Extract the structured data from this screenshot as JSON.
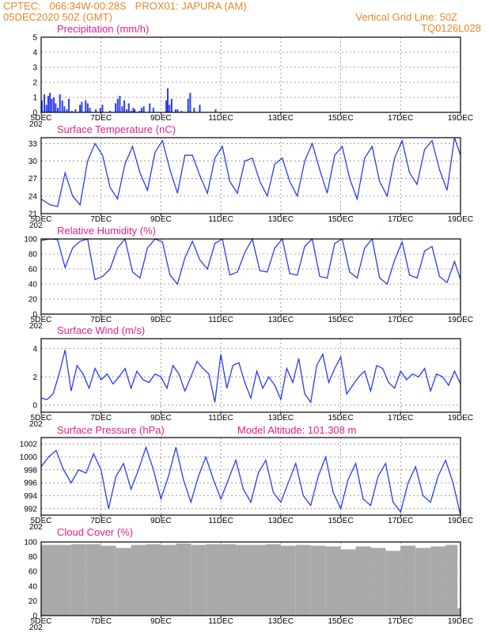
{
  "header": {
    "line1_left": "CPTEC:   066:34W-00:28S   PROX01: JAPURA (AM)",
    "line2_left": "05DEC2020 50Z (GMT)",
    "line2_right": "Vertical Grid Line: 50Z",
    "line3_right": "TQ0126L028"
  },
  "colors": {
    "header": "#e8862a",
    "title": "#e0208a",
    "line": "#2a3cf0",
    "cloud": "#a9a9a9"
  },
  "x_axis": {
    "ticks": [
      "5DEC",
      "7DEC",
      "9DEC",
      "11DEC",
      "13DEC",
      "15DEC",
      "17DEC",
      "19DEC"
    ],
    "year_fragment": "202"
  },
  "chart_data": [
    {
      "type": "bar",
      "title": "Precipitation (mm/h)",
      "ylim": [
        0,
        5
      ],
      "yticks": [
        "0",
        "1",
        "2",
        "3",
        "4",
        "5"
      ],
      "x": [
        0.0,
        0.08,
        0.15,
        0.21,
        0.27,
        0.33,
        0.4,
        0.46,
        0.53,
        0.6,
        0.68,
        0.75,
        0.83,
        0.9,
        1.0,
        1.06,
        1.12,
        1.2,
        1.27,
        1.33,
        1.4,
        1.46,
        1.53,
        1.6,
        1.66,
        1.72,
        1.8,
        1.88,
        1.95,
        2.02,
        2.08,
        2.15,
        2.21,
        2.27,
        2.33,
        2.4,
        2.46,
        2.53,
        2.6,
        2.68,
        2.75,
        2.83,
        2.9,
        2.98,
        3.05,
        3.1,
        3.15,
        3.2,
        3.26,
        3.33,
        3.4,
        3.46,
        3.53,
        3.6,
        3.66,
        3.72,
        3.8,
        3.9,
        4.05,
        4.1,
        4.15,
        4.2,
        4.26,
        4.33,
        4.4,
        4.46,
        4.53,
        4.6,
        4.66,
        4.72,
        4.8,
        4.88,
        4.95,
        5.02,
        5.08,
        5.15,
        5.21,
        5.27,
        5.35,
        5.42,
        5.5,
        5.6,
        5.66,
        5.72,
        5.8,
        5.88,
        5.95,
        6.02,
        6.08,
        6.15,
        6.22,
        6.3,
        6.4,
        6.5,
        6.6,
        6.7,
        6.78,
        6.85,
        6.92,
        7.0,
        7.08,
        7.15,
        7.22,
        7.3,
        7.4,
        7.5,
        7.6,
        7.7,
        7.78,
        7.85,
        7.9,
        7.96,
        8.02,
        8.08,
        8.15,
        8.22,
        8.3,
        8.4,
        8.5,
        8.6,
        8.7,
        8.8,
        8.9,
        9.0,
        9.06,
        9.12,
        9.2,
        9.28,
        9.35,
        9.42,
        9.5,
        9.6,
        9.7,
        9.8,
        9.9,
        10.0,
        10.08,
        10.15,
        10.22,
        10.3,
        10.4,
        10.5,
        10.6,
        10.68,
        10.75,
        10.82,
        10.9,
        11.0,
        11.08,
        11.15,
        11.22,
        11.3,
        11.4,
        11.5,
        11.6,
        11.7,
        11.78,
        11.85,
        11.92,
        12.0,
        12.08,
        12.15,
        12.22,
        12.3,
        12.4,
        12.5,
        12.6,
        12.7,
        12.8,
        12.9,
        13.0,
        13.05,
        13.1,
        13.15,
        13.2,
        13.26,
        13.33,
        13.4,
        13.46,
        13.53,
        13.6,
        13.66,
        13.72,
        13.8
      ],
      "values": [
        0.8,
        1.2,
        0.5,
        1.1,
        1.3,
        0.9,
        1.0,
        0.6,
        0.3,
        1.2,
        0.8,
        0.4,
        0.2,
        0.9,
        0.1,
        0.0,
        0.2,
        0.0,
        0.5,
        0.7,
        0.0,
        0.8,
        0.6,
        0.3,
        0.0,
        0.0,
        0.2,
        0.0,
        0.3,
        0.5,
        0.0,
        0.0,
        0.0,
        0.1,
        0.0,
        0.0,
        0.6,
        0.9,
        1.1,
        0.4,
        0.8,
        0.2,
        0.6,
        0.1,
        0.3,
        0.2,
        0.0,
        0.0,
        0.1,
        0.3,
        0.4,
        0.0,
        0.0,
        0.6,
        0.0,
        0.3,
        0.0,
        0.0,
        0.0,
        0.0,
        0.8,
        1.6,
        0.5,
        0.9,
        0.0,
        0.2,
        0.2,
        0.0,
        0.1,
        0.0,
        0.0,
        0.9,
        1.3,
        0.0,
        0.3,
        0.0,
        0.0,
        0.5,
        0.0,
        0.0,
        0.0,
        0.0,
        0.0,
        0.0,
        0.2,
        0.0,
        0.0,
        0.0,
        0.0,
        0.0,
        0.0,
        0.0,
        0.0,
        0.0,
        0.0,
        0.0,
        0.0,
        0.0,
        0.0,
        0.0,
        0.0,
        0.0,
        0.0,
        0.0,
        0.0,
        0.0,
        0.0,
        0.0,
        0.0,
        0.0,
        0.0,
        0.0,
        0.0,
        0.0,
        0.0,
        0.0,
        0.0,
        0.0,
        0.0,
        0.0,
        0.0,
        0.0,
        0.0,
        0.0,
        0.0,
        0.0,
        0.0,
        0.0,
        0.0,
        0.0,
        0.0,
        0.0,
        0.0,
        0.0,
        0.0,
        0.0,
        0.0,
        0.0,
        0.0,
        0.0,
        0.0,
        0.0,
        0.0,
        0.0,
        0.0,
        0.0,
        0.0,
        0.0,
        0.0,
        0.0,
        0.0,
        0.0,
        0.0,
        0.0,
        0.0,
        0.0,
        0.0,
        0.0,
        0.0,
        0.0,
        0.0,
        0.0,
        0.0,
        0.0,
        0.0,
        0.0,
        0.0,
        0.0,
        0.0,
        0.0,
        0.0,
        0.0,
        0.0,
        0.0,
        0.0,
        0.0,
        0.0,
        0.0,
        0.0,
        0.0,
        0.0,
        0.0,
        0.0,
        0.0
      ]
    },
    {
      "type": "line",
      "title": "Surface Temperature (nC)",
      "ylim": [
        21,
        34
      ],
      "yticks": [
        "21",
        "24",
        "27",
        "30",
        "33"
      ],
      "x": [
        0.0,
        0.3,
        0.55,
        0.8,
        1.05,
        1.3,
        1.55,
        1.8,
        2.05,
        2.3,
        2.55,
        2.8,
        3.05,
        3.3,
        3.55,
        3.8,
        4.05,
        4.3,
        4.55,
        4.8,
        5.05,
        5.3,
        5.55,
        5.8,
        6.05,
        6.3,
        6.55,
        6.8,
        7.05,
        7.3,
        7.55,
        7.8,
        8.05,
        8.3,
        8.55,
        8.8,
        9.05,
        9.3,
        9.55,
        9.8,
        10.05,
        10.3,
        10.55,
        10.8,
        11.05,
        11.3,
        11.55,
        11.8,
        12.05,
        12.3,
        12.55,
        12.8,
        13.05,
        13.3,
        13.55,
        13.8,
        14.0
      ],
      "values": [
        23.5,
        22.5,
        22.2,
        28.0,
        24.0,
        22.5,
        30.0,
        33.0,
        31.0,
        25.5,
        23.5,
        29.5,
        32.5,
        28.0,
        25.0,
        31.5,
        33.5,
        28.5,
        24.5,
        31.0,
        31.0,
        27.5,
        24.5,
        30.5,
        32.5,
        26.5,
        24.5,
        30.0,
        30.5,
        26.5,
        24.0,
        29.5,
        30.5,
        26.5,
        24.0,
        30.0,
        33.0,
        28.5,
        24.5,
        31.0,
        32.5,
        27.0,
        23.5,
        30.5,
        32.5,
        26.5,
        24.0,
        30.5,
        33.5,
        28.0,
        26.0,
        32.0,
        33.5,
        28.5,
        25.0,
        34.0,
        31.0
      ]
    },
    {
      "type": "line",
      "title": "Relative Humidity (%)",
      "ylim": [
        0,
        100
      ],
      "yticks": [
        "0",
        "20",
        "40",
        "60",
        "80",
        "100"
      ],
      "x": [
        0.0,
        0.3,
        0.55,
        0.8,
        1.05,
        1.3,
        1.55,
        1.8,
        2.05,
        2.3,
        2.55,
        2.8,
        3.05,
        3.3,
        3.55,
        3.8,
        4.05,
        4.3,
        4.55,
        4.8,
        5.05,
        5.3,
        5.55,
        5.8,
        6.05,
        6.3,
        6.55,
        6.8,
        7.05,
        7.3,
        7.55,
        7.8,
        8.05,
        8.3,
        8.55,
        8.8,
        9.05,
        9.3,
        9.55,
        9.8,
        10.05,
        10.3,
        10.55,
        10.8,
        11.05,
        11.3,
        11.55,
        11.8,
        12.05,
        12.3,
        12.55,
        12.8,
        13.05,
        13.3,
        13.55,
        13.8,
        14.0
      ],
      "values": [
        98,
        100,
        99,
        62,
        88,
        97,
        100,
        46,
        50,
        60,
        88,
        100,
        56,
        48,
        88,
        100,
        96,
        52,
        40,
        75,
        97,
        72,
        60,
        94,
        100,
        52,
        56,
        82,
        100,
        58,
        56,
        88,
        100,
        54,
        52,
        90,
        100,
        50,
        48,
        94,
        100,
        56,
        48,
        88,
        100,
        48,
        40,
        72,
        96,
        52,
        48,
        84,
        90,
        50,
        42,
        70,
        46
      ]
    },
    {
      "type": "line",
      "title": "Surface Wind (m/s)",
      "ylim": [
        -0.5,
        4.7
      ],
      "yticks": [
        "0",
        "2",
        "4"
      ],
      "x": [
        0.0,
        0.2,
        0.4,
        0.6,
        0.8,
        1.0,
        1.2,
        1.4,
        1.6,
        1.8,
        2.0,
        2.2,
        2.4,
        2.6,
        2.8,
        3.0,
        3.2,
        3.4,
        3.6,
        3.8,
        4.0,
        4.2,
        4.4,
        4.6,
        4.8,
        5.0,
        5.2,
        5.4,
        5.6,
        5.8,
        6.0,
        6.2,
        6.4,
        6.6,
        6.8,
        7.0,
        7.2,
        7.4,
        7.6,
        7.8,
        8.0,
        8.2,
        8.4,
        8.6,
        8.8,
        9.0,
        9.2,
        9.4,
        9.6,
        9.8,
        10.0,
        10.2,
        10.4,
        10.6,
        10.8,
        11.0,
        11.2,
        11.4,
        11.6,
        11.8,
        12.0,
        12.2,
        12.4,
        12.6,
        12.8,
        13.0,
        13.2,
        13.4,
        13.6,
        13.8,
        14.0
      ],
      "values": [
        0.5,
        0.4,
        0.8,
        2.2,
        3.9,
        1.0,
        2.8,
        2.2,
        1.2,
        2.6,
        1.8,
        2.2,
        1.5,
        2.0,
        2.6,
        1.2,
        2.4,
        1.8,
        1.6,
        2.2,
        2.0,
        1.2,
        2.8,
        2.2,
        1.0,
        2.0,
        3.1,
        2.6,
        2.2,
        0.2,
        3.6,
        1.2,
        2.8,
        3.0,
        1.6,
        0.5,
        2.4,
        1.2,
        2.0,
        1.4,
        0.4,
        2.6,
        1.6,
        3.3,
        0.8,
        0.2,
        2.8,
        3.6,
        1.6,
        2.6,
        3.4,
        0.8,
        1.4,
        2.0,
        2.4,
        1.0,
        2.8,
        2.6,
        1.6,
        1.2,
        2.4,
        1.8,
        2.2,
        2.0,
        2.6,
        1.0,
        2.2,
        2.0,
        1.4,
        2.4,
        1.5
      ]
    },
    {
      "type": "line",
      "title": "Surface Pressure (hPa)",
      "subtitle": "Model Altitude: 101.308 m",
      "ylim": [
        991,
        1003
      ],
      "yticks": [
        "992",
        "994",
        "996",
        "998",
        "1000",
        "1002"
      ],
      "x": [
        0.0,
        0.25,
        0.5,
        0.75,
        1.0,
        1.25,
        1.5,
        1.75,
        2.0,
        2.25,
        2.5,
        2.75,
        3.0,
        3.25,
        3.5,
        3.75,
        4.0,
        4.25,
        4.5,
        4.75,
        5.0,
        5.25,
        5.5,
        5.75,
        6.0,
        6.25,
        6.5,
        6.75,
        7.0,
        7.25,
        7.5,
        7.75,
        8.0,
        8.25,
        8.5,
        8.75,
        9.0,
        9.25,
        9.5,
        9.75,
        10.0,
        10.25,
        10.5,
        10.75,
        11.0,
        11.25,
        11.5,
        11.75,
        12.0,
        12.25,
        12.5,
        12.75,
        13.0,
        13.25,
        13.5,
        13.75,
        14.0
      ],
      "values": [
        998.5,
        1000.0,
        1001.0,
        998.0,
        996.0,
        998.0,
        997.5,
        1000.5,
        998.0,
        992.0,
        997.0,
        999.0,
        995.0,
        998.0,
        1001.5,
        998.0,
        993.5,
        997.0,
        1001.5,
        996.5,
        993.0,
        997.0,
        1000.0,
        996.5,
        993.5,
        996.5,
        999.5,
        995.0,
        993.0,
        997.5,
        999.5,
        994.5,
        993.0,
        996.0,
        999.0,
        994.0,
        992.5,
        997.0,
        1000.0,
        994.5,
        992.0,
        996.5,
        999.0,
        993.5,
        992.5,
        997.0,
        999.0,
        993.0,
        991.5,
        996.0,
        998.5,
        994.0,
        993.0,
        997.0,
        999.5,
        996.0,
        991.0
      ]
    },
    {
      "type": "bar",
      "title": "Cloud Cover (%)",
      "ylim": [
        0,
        100
      ],
      "yticks": [
        "0",
        "20",
        "40",
        "60",
        "80",
        "100"
      ],
      "x": [
        0.0,
        0.5,
        1.0,
        1.5,
        2.0,
        2.5,
        3.0,
        3.5,
        4.0,
        4.5,
        5.0,
        5.5,
        6.0,
        6.5,
        7.0,
        7.5,
        8.0,
        8.5,
        9.0,
        9.5,
        10.0,
        10.5,
        11.0,
        11.5,
        12.0,
        12.5,
        13.0,
        13.5,
        13.9
      ],
      "values": [
        96,
        96,
        97,
        97,
        95,
        92,
        96,
        97,
        96,
        98,
        96,
        97,
        97,
        96,
        96,
        97,
        95,
        96,
        95,
        94,
        90,
        94,
        92,
        88,
        95,
        92,
        94,
        96,
        10
      ]
    }
  ]
}
